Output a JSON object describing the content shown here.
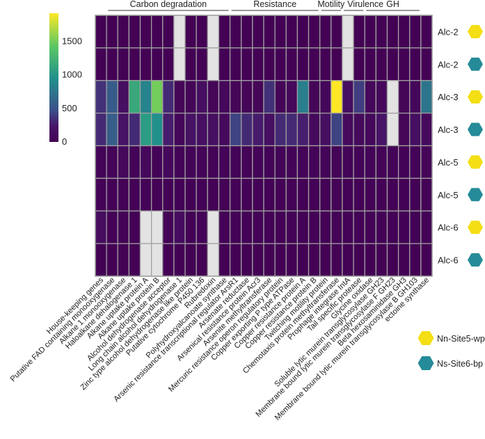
{
  "chart_data": {
    "type": "heatmap",
    "title": "",
    "colorscale": "viridis",
    "zlim": [
      0,
      1920
    ],
    "colorbar_ticks": [
      0,
      500,
      1000,
      1500
    ],
    "missing_color": "#e3e3e3",
    "columns": [
      "House-keeping genes",
      "Putative FAD containing monooxygenase",
      "Alkane 1 monooxygenase",
      "Haloalkane dehalogenase 1",
      "Alkane uptake protein A",
      "Alkane uptake protein B",
      "Alcohol dehydrogenase  acceptor",
      "Long chain alcohol dehydrogenase 1",
      "Zinc type alcohol dehydrogenase like protein",
      "Putative cytochrome P450 136",
      "Rubredoxin",
      "Polyhydroxyalcanoate synthase",
      "Arsenic resistance transcriptional regulator ArsR1",
      "Arsenate reductase",
      "Arsenical resistance protein Acr3",
      "Arsenite methyltransferase",
      "Mercuric resistance operon regulatory protein",
      "Copper exporting P type ATPase",
      "Copper resistance protein A",
      "Copper resistance protein B",
      "Twitching motility protein",
      "Chemotaxis protein methyltransferase",
      "Prophage integrase IntA",
      "Tail specific protease",
      "Glycine oxidase",
      "Soluble lytic murein transglycosylase GH23",
      "Membrane bound lytic murein transglycosylase F GH23",
      "Beta hexosaminidase GH3",
      "Membrane bound lytic murein transglycosylase B GH103",
      "ectoine synthase"
    ],
    "groups": [
      {
        "label": "Carbon degradation",
        "from": 2,
        "to": 12
      },
      {
        "label": "Resistance",
        "from": 13,
        "to": 20
      },
      {
        "label": "Motility",
        "from": 21,
        "to": 22
      },
      {
        "label": "Virulence",
        "from": 23,
        "to": 24
      },
      {
        "label": "GH",
        "from": 25,
        "to": 29
      }
    ],
    "rows": [
      {
        "label": "Alc-2",
        "site": 0,
        "values": [
          10,
          10,
          10,
          10,
          10,
          10,
          10,
          null,
          10,
          10,
          null,
          10,
          10,
          10,
          10,
          10,
          10,
          10,
          10,
          10,
          10,
          10,
          null,
          10,
          10,
          10,
          10,
          10,
          10,
          10
        ]
      },
      {
        "label": "Alc-2",
        "site": 1,
        "values": [
          10,
          10,
          10,
          10,
          10,
          10,
          10,
          null,
          10,
          10,
          null,
          10,
          10,
          10,
          10,
          10,
          10,
          10,
          10,
          10,
          10,
          10,
          null,
          10,
          10,
          10,
          10,
          10,
          10,
          10
        ]
      },
      {
        "label": "Alc-3",
        "site": 0,
        "values": [
          350,
          550,
          150,
          1150,
          850,
          1500,
          320,
          50,
          50,
          150,
          50,
          80,
          50,
          50,
          50,
          350,
          50,
          80,
          820,
          50,
          60,
          1920,
          150,
          400,
          80,
          80,
          null,
          50,
          60,
          750
        ]
      },
      {
        "label": "Alc-3",
        "site": 1,
        "values": [
          320,
          560,
          200,
          320,
          1050,
          950,
          270,
          60,
          180,
          150,
          150,
          100,
          420,
          320,
          260,
          150,
          320,
          320,
          270,
          100,
          150,
          420,
          100,
          100,
          80,
          200,
          null,
          50,
          150,
          100
        ]
      },
      {
        "label": "Alc-5",
        "site": 0,
        "values": [
          30,
          30,
          80,
          30,
          80,
          30,
          80,
          30,
          30,
          30,
          30,
          30,
          30,
          30,
          30,
          30,
          30,
          30,
          30,
          30,
          30,
          30,
          30,
          30,
          30,
          30,
          30,
          30,
          30,
          40
        ]
      },
      {
        "label": "Alc-5",
        "site": 1,
        "values": [
          20,
          20,
          20,
          20,
          20,
          20,
          20,
          20,
          20,
          20,
          20,
          20,
          20,
          20,
          20,
          20,
          20,
          20,
          20,
          20,
          20,
          20,
          20,
          20,
          20,
          20,
          20,
          20,
          20,
          20
        ]
      },
      {
        "label": "Alc-6",
        "site": 0,
        "values": [
          130,
          20,
          20,
          20,
          null,
          null,
          20,
          110,
          20,
          20,
          null,
          20,
          20,
          20,
          20,
          20,
          20,
          20,
          20,
          20,
          20,
          20,
          20,
          20,
          20,
          20,
          20,
          20,
          20,
          20
        ]
      },
      {
        "label": "Alc-6",
        "site": 1,
        "values": [
          10,
          10,
          10,
          10,
          null,
          null,
          10,
          10,
          10,
          10,
          null,
          10,
          10,
          10,
          10,
          10,
          10,
          10,
          10,
          10,
          10,
          10,
          10,
          10,
          10,
          10,
          10,
          10,
          10,
          10
        ]
      }
    ],
    "legend": [
      {
        "label": "Nn-Site5-wp",
        "color": "#f4de14"
      },
      {
        "label": "Ns-Site6-bp",
        "color": "#258b98"
      }
    ],
    "legend_position": "bottom-right"
  }
}
